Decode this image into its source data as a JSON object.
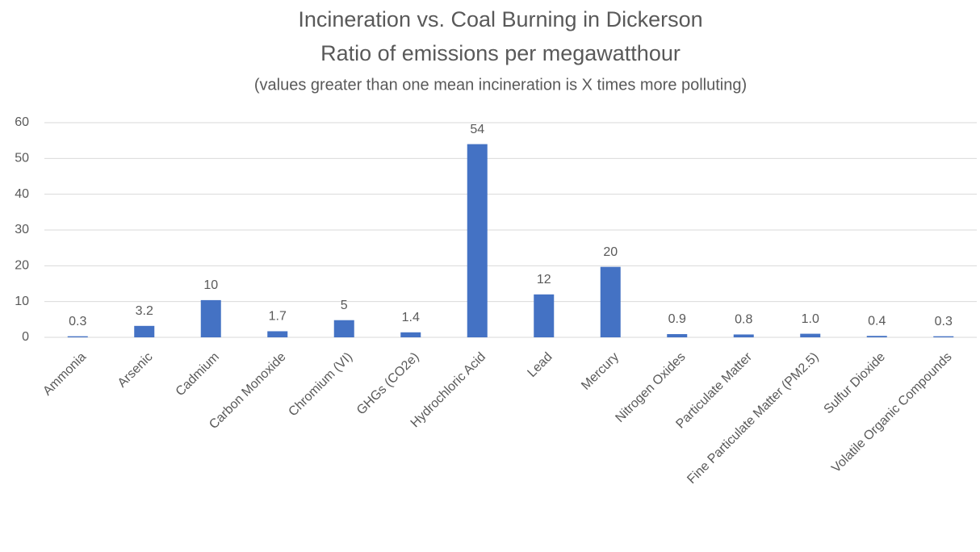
{
  "chart_data": {
    "type": "bar",
    "title": "Incineration vs. Coal Burning in Dickerson",
    "subtitle": "Ratio of emissions per megawatthour",
    "annotation": "(values greater than one mean incineration is X times more polluting)",
    "categories": [
      "Ammonia",
      "Arsenic",
      "Cadmium",
      "Carbon Monoxide",
      "Chromium (VI)",
      "GHGs (CO2e)",
      "Hydrochloric Acid",
      "Lead",
      "Mercury",
      "Nitrogen Oxides",
      "Particulate Matter",
      "Fine Particulate Matter (PM2.5)",
      "Sulfur Dioxide",
      "Volatile Organic Compounds"
    ],
    "values": [
      0.3,
      3.2,
      10.4,
      1.7,
      4.8,
      1.4,
      54,
      12,
      19.7,
      0.9,
      0.8,
      1.0,
      0.4,
      0.3
    ],
    "value_labels": [
      "0.3",
      "3.2",
      "10",
      "1.7",
      "5",
      "1.4",
      "54",
      "12",
      "20",
      "0.9",
      "0.8",
      "1.0",
      "0.4",
      "0.3"
    ],
    "color": "#4472c4",
    "ylim": [
      0,
      60
    ],
    "yticks": [
      0,
      10,
      20,
      30,
      40,
      50,
      60
    ],
    "grid": true
  }
}
